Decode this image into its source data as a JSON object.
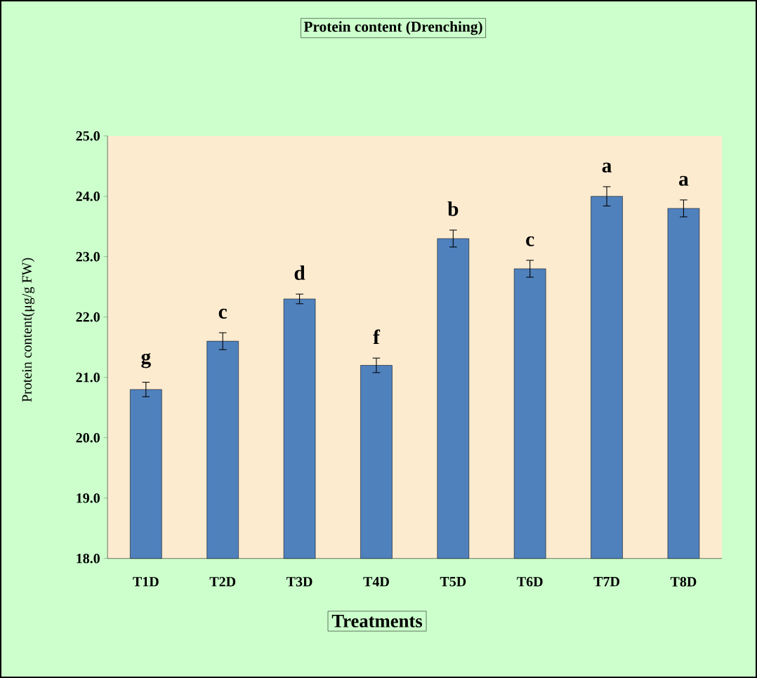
{
  "chart_data": {
    "type": "bar",
    "title": "Protein content (Drenching)",
    "xlabel": "Treatments",
    "ylabel": "Protein content(μg/g FW)",
    "categories": [
      "T1D",
      "T2D",
      "T3D",
      "T4D",
      "T5D",
      "T6D",
      "T7D",
      "T8D"
    ],
    "values": [
      20.8,
      21.6,
      22.3,
      21.2,
      23.3,
      22.8,
      24.0,
      23.8
    ],
    "errors": [
      0.12,
      0.14,
      0.08,
      0.12,
      0.14,
      0.14,
      0.16,
      0.14
    ],
    "color": "#4f81bd",
    "ylim": [
      18,
      25
    ],
    "yticks": [
      {
        "value": 18,
        "label": "18.0"
      },
      {
        "value": 19,
        "label": "19.0"
      },
      {
        "value": 20,
        "label": "20.0"
      },
      {
        "value": 21,
        "label": "21.0"
      },
      {
        "value": 22,
        "label": "22.0"
      },
      {
        "value": 23,
        "label": "23.0"
      },
      {
        "value": 24,
        "label": "24.0"
      },
      {
        "value": 25,
        "label": "25.0"
      }
    ],
    "grid": false,
    "annotations": [
      {
        "text": "g",
        "x": "T1D",
        "y": 20.8
      },
      {
        "text": "c",
        "x": "T2D",
        "y": 21.6
      },
      {
        "text": "d",
        "x": "T3D",
        "y": 22.3
      },
      {
        "text": "f",
        "x": "T4D",
        "y": 21.2
      },
      {
        "text": "b",
        "x": "T5D",
        "y": 23.3
      },
      {
        "text": "c",
        "x": "T6D",
        "y": 22.8
      },
      {
        "text": "a",
        "x": "T7D",
        "y": 24.0
      },
      {
        "text": "a",
        "x": "T8D",
        "y": 23.8
      }
    ]
  }
}
